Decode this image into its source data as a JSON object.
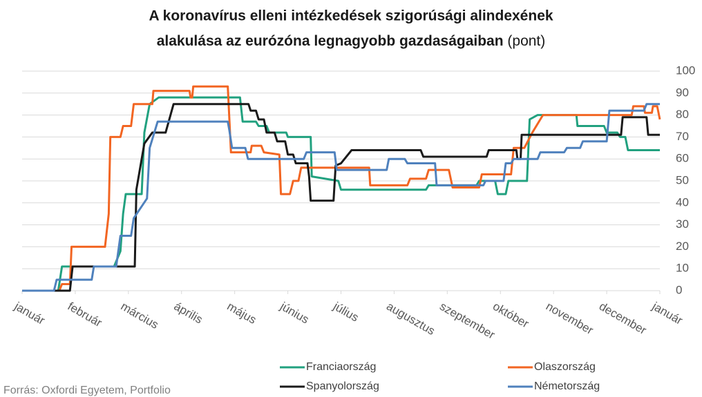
{
  "chart_data": {
    "type": "line",
    "title": [
      "A koronavírus elleni intézkedések szigorúsági alindexének",
      "alakulása az eurózóna legnagyobb gazdaságaiban"
    ],
    "title_unit": "(pont)",
    "source": "Forrás: Oxfordi Egyetem, Portfolio",
    "xlim": [
      0,
      12
    ],
    "xticks": [
      {
        "value": 0,
        "label": "január"
      },
      {
        "value": 1,
        "label": "február"
      },
      {
        "value": 2,
        "label": "március"
      },
      {
        "value": 3,
        "label": "április"
      },
      {
        "value": 4,
        "label": "május"
      },
      {
        "value": 5,
        "label": "június"
      },
      {
        "value": 6,
        "label": "július"
      },
      {
        "value": 7,
        "label": "augusztus"
      },
      {
        "value": 8,
        "label": "szeptember"
      },
      {
        "value": 9,
        "label": "október"
      },
      {
        "value": 10,
        "label": "november"
      },
      {
        "value": 11,
        "label": "december"
      },
      {
        "value": 12,
        "label": "január"
      }
    ],
    "ylim": [
      0,
      100
    ],
    "yticks": [
      0,
      10,
      20,
      30,
      40,
      50,
      60,
      70,
      80,
      90,
      100
    ],
    "grid": true,
    "series": [
      {
        "name": "Franciaország",
        "color": "#21a17f",
        "x": [
          0,
          0.68,
          0.75,
          1.73,
          1.85,
          1.9,
          1.95,
          2.25,
          2.3,
          2.4,
          2.57,
          4.1,
          4.15,
          4.4,
          4.45,
          4.6,
          4.65,
          4.97,
          5.0,
          5.43,
          5.45,
          5.95,
          6.0,
          7.6,
          7.65,
          8.55,
          8.6,
          8.9,
          8.95,
          9.1,
          9.15,
          9.5,
          9.55,
          9.7,
          10.43,
          10.45,
          10.95,
          11.0,
          11.2,
          11.25,
          11.35,
          11.4,
          12
        ],
        "values": [
          0,
          0,
          11,
          11,
          18,
          35,
          44,
          44,
          72,
          85,
          88,
          88,
          77,
          77,
          75,
          75,
          72,
          72,
          70,
          70,
          52,
          50,
          46,
          46,
          48,
          48,
          50,
          50,
          44,
          44,
          50,
          50,
          78,
          80,
          80,
          75,
          75,
          72,
          72,
          70,
          70,
          64,
          64
        ]
      },
      {
        "name": "Olaszország",
        "color": "#f26522",
        "x": [
          0,
          0.7,
          0.75,
          0.9,
          0.93,
          1.56,
          1.63,
          1.66,
          1.85,
          1.9,
          2.05,
          2.1,
          2.25,
          2.45,
          2.47,
          3.15,
          3.17,
          3.2,
          3.22,
          3.87,
          3.93,
          4.3,
          4.32,
          4.5,
          4.55,
          4.84,
          4.87,
          5.04,
          5.1,
          5.2,
          5.25,
          6.53,
          6.55,
          7.25,
          7.3,
          7.6,
          7.65,
          8.03,
          8.1,
          8.6,
          8.65,
          9.2,
          9.25,
          9.45,
          9.6,
          9.8,
          11.47,
          11.5,
          11.7,
          11.72,
          11.85,
          11.87,
          11.95,
          12
        ],
        "values": [
          0,
          0,
          3,
          3,
          20,
          20,
          35,
          70,
          70,
          75,
          75,
          85,
          85,
          85,
          91,
          91,
          88,
          88,
          93,
          93,
          63,
          63,
          66,
          66,
          63,
          62,
          44,
          44,
          50,
          50,
          56,
          56,
          48,
          48,
          51,
          51,
          55,
          55,
          47,
          47,
          53,
          53,
          65,
          65,
          72,
          80,
          80,
          84,
          84,
          81,
          81,
          84,
          84,
          78
        ]
      },
      {
        "name": "Spanyolország",
        "color": "#1a1a1a",
        "x": [
          0,
          0.9,
          0.95,
          2.12,
          2.15,
          2.3,
          2.45,
          2.7,
          2.85,
          4.26,
          4.3,
          4.4,
          4.45,
          4.55,
          4.6,
          4.75,
          4.8,
          4.95,
          5.0,
          5.1,
          5.15,
          5.37,
          5.4,
          5.43,
          5.86,
          5.9,
          6.0,
          6.2,
          7.5,
          7.55,
          8.74,
          8.78,
          9.3,
          9.32,
          9.38,
          9.4,
          11.27,
          11.3,
          11.75,
          11.78,
          12
        ],
        "values": [
          0,
          0,
          11,
          11,
          46,
          67,
          72,
          72,
          85,
          85,
          82,
          82,
          78,
          78,
          72,
          72,
          68,
          68,
          62,
          62,
          58,
          58,
          52,
          41,
          41,
          57,
          58,
          64,
          64,
          61,
          61,
          64,
          64,
          60,
          60,
          71,
          71,
          79,
          79,
          71,
          71
        ]
      },
      {
        "name": "Németország",
        "color": "#4f81bd",
        "x": [
          0,
          0.6,
          0.65,
          1.31,
          1.35,
          1.77,
          1.85,
          2.05,
          2.1,
          2.35,
          2.4,
          2.55,
          2.6,
          3.87,
          3.9,
          3.95,
          4.2,
          4.25,
          5.3,
          5.35,
          5.88,
          5.92,
          6.86,
          6.9,
          7.2,
          7.25,
          7.77,
          7.8,
          8.68,
          8.72,
          9.06,
          9.1,
          9.2,
          9.25,
          9.7,
          9.75,
          10.2,
          10.25,
          10.5,
          10.55,
          11.0,
          11.05,
          11.7,
          11.75,
          12
        ],
        "values": [
          0,
          0,
          5,
          5,
          11,
          11,
          25,
          25,
          33,
          42,
          65,
          77,
          77,
          77,
          73,
          65,
          65,
          60,
          60,
          63,
          63,
          55,
          55,
          60,
          60,
          58,
          58,
          48,
          48,
          50,
          50,
          58,
          58,
          60,
          60,
          63,
          63,
          65,
          65,
          68,
          68,
          82,
          82,
          85,
          85
        ]
      }
    ]
  }
}
